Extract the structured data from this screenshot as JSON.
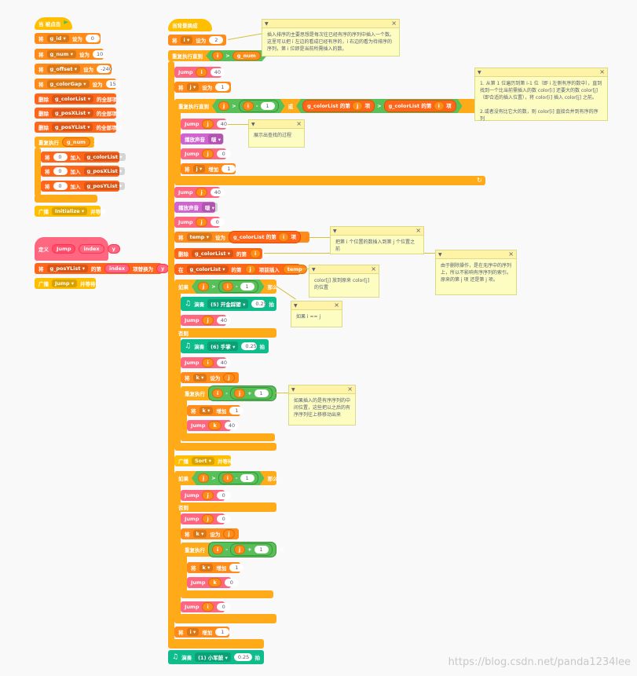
{
  "colors": {
    "event": "#ffbf00",
    "control": "#ffab19",
    "variable": "#ff8c1a",
    "list": "#ff661a",
    "myblocks": "#ff6680",
    "sound": "#cf63cf",
    "music": "#0fbd8c",
    "operator": "#59c059",
    "note": "#fdfdc2"
  },
  "left_script": {
    "hat": "当 被点击",
    "set_label": "将",
    "to_label": "设为",
    "sets": [
      {
        "var": "g_id",
        "val": "0"
      },
      {
        "var": "g_num",
        "val": "10"
      },
      {
        "var": "g_offset",
        "val": "-240"
      },
      {
        "var": "g_colorGap",
        "val": "15"
      }
    ],
    "deletes": [
      {
        "pre": "删除",
        "list": "g_colorList",
        "post": "的全部项目"
      },
      {
        "pre": "删除",
        "list": "g_posXList",
        "post": "的全部项目"
      },
      {
        "pre": "删除",
        "list": "g_posYList",
        "post": "的全部项目"
      }
    ],
    "repeat_pre": "重复执行",
    "repeat_var": "g_num",
    "repeat_post": "次",
    "adds": [
      {
        "pre": "将",
        "val": "0",
        "mid": "加入",
        "list": "g_colorList"
      },
      {
        "pre": "将",
        "val": "0",
        "mid": "加入",
        "list": "g_posXList"
      },
      {
        "pre": "将",
        "val": "0",
        "mid": "加入",
        "list": "g_posYList"
      }
    ],
    "broadcast_pre": "广播",
    "broadcast_msg": "Initialize",
    "broadcast_post": "并等待"
  },
  "define_script": {
    "define": "定义",
    "name": "Jump",
    "arg1": "index",
    "arg2": "y",
    "replace_pre": "将",
    "replace_list": "g_posYList",
    "replace_mid": "的第",
    "replace_idx": "index",
    "replace_post": "项替换为",
    "replace_val": "y",
    "broadcast_pre": "广播",
    "broadcast_msg": "Jump",
    "broadcast_post": "并等待"
  },
  "main_script": {
    "hat": "当背景换成",
    "set_i": {
      "pre": "将",
      "var": "i",
      "mid": "设为",
      "val": "2"
    },
    "repeat_until": "重复执行直到",
    "i": "i",
    "gt": ">",
    "g_num": "g_num",
    "jump": "Jump",
    "forty": "40",
    "zero": "0",
    "one": "1",
    "set_j": {
      "pre": "将",
      "var": "j",
      "mid": "设为",
      "val": "1"
    },
    "or": "或",
    "minus": "-",
    "plus": "+",
    "lt": "<",
    "item_of": "的第",
    "item": "项",
    "colorList": "g_colorList",
    "j": "j",
    "k": "k",
    "play_sound": "播放声音",
    "sound": "啵",
    "change": "将",
    "change_mid": "增加",
    "temp_pre": "将",
    "temp": "temp",
    "temp_mid": "设为",
    "delete_pre": "删除",
    "insert_pre": "在",
    "insert_mid": "项前插入",
    "if": "如果",
    "then": "那么",
    "else": "否则",
    "play_note": "演奏",
    "note1": "(5) 开金踩镲",
    "note2": "(6) 手掌",
    "note3": "(1) 小军鼓",
    "beats": "0.25",
    "beat_unit": "拍",
    "repeat": "重复执行",
    "times": "次",
    "broadcast_sort": "广播",
    "sort_msg": "Sort",
    "wait": "并等待"
  },
  "notes": [
    {
      "text": "插入排序的主要思想是每次往已经有序的序列中插入一个数。这里可以把 i 左边的看成已经有序的，i 右边的看为待排序的序列，第 i 位即是当前所需插入的数。"
    },
    {
      "text": "1. 从第 1 位遍历到第 i-1 位（即 i 左侧有序的数中），直到找到一个比当前需插入的数 color[i] 还要大的数 color[j]（即合适的插入位置），将 color[i] 插入 color[j] 之前。\n\n2.或者没有比它大的数，则 color[i] 直接合并到有序的序列"
    },
    {
      "text": "展示出查找的过程"
    },
    {
      "text": "把第 i 个位置的数插入到第 j 个位置之前"
    },
    {
      "text": "由于删除操作，是在无序中的序列上，所以不影响有序序列的索引。原来的第 j 项 还是第 j 项。"
    },
    {
      "text": "color[j] 放到原来 color[j] 的位置"
    },
    {
      "text": "如果 i == j"
    },
    {
      "text": "如果插入的是有序序列的中间位置，这些把以之后的有序序列往上移移动出来"
    }
  ],
  "watermark": "https://blog.csdn.net/panda1234lee"
}
